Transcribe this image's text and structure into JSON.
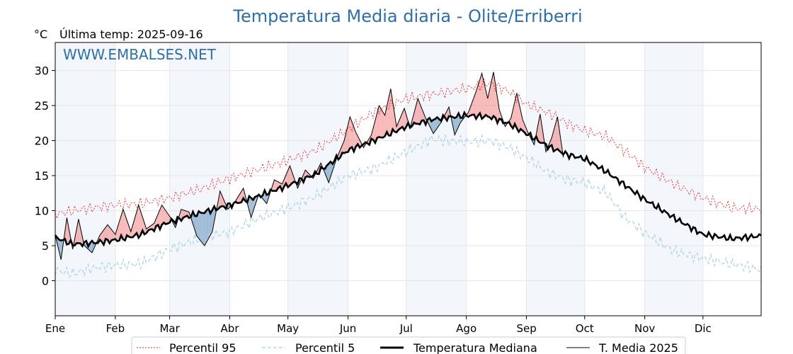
{
  "chart_data": {
    "type": "line",
    "title": "Temperatura Media diaria - Olite/Erriberri",
    "unit_label": "°C",
    "subtitle": "Última temp: 2025-09-16",
    "watermark": "WWW.EMBALSES.NET",
    "x_categories": [
      "Ene",
      "Feb",
      "Mar",
      "Abr",
      "May",
      "Jun",
      "Jul",
      "Ago",
      "Sep",
      "Oct",
      "Nov",
      "Dic"
    ],
    "x_range_days": [
      1,
      365
    ],
    "month_start_days": [
      1,
      32,
      60,
      91,
      121,
      152,
      182,
      213,
      244,
      274,
      305,
      335
    ],
    "ylim": [
      -5,
      34
    ],
    "yticks": [
      0,
      5,
      10,
      15,
      20,
      25,
      30
    ],
    "grid": true,
    "legend_position": "bottom",
    "series": [
      {
        "name": "Percentil 95",
        "color": "#e4262b",
        "style": "dotted",
        "points": [
          [
            1,
            9.5
          ],
          [
            15,
            10.2
          ],
          [
            32,
            10.8
          ],
          [
            45,
            11.0
          ],
          [
            60,
            11.8
          ],
          [
            75,
            13.0
          ],
          [
            91,
            14.6
          ],
          [
            105,
            15.8
          ],
          [
            121,
            17.2
          ],
          [
            135,
            18.6
          ],
          [
            152,
            21.6
          ],
          [
            165,
            24.0
          ],
          [
            182,
            26.0
          ],
          [
            195,
            26.6
          ],
          [
            213,
            27.4
          ],
          [
            225,
            28.2
          ],
          [
            235,
            27.0
          ],
          [
            244,
            25.2
          ],
          [
            255,
            24.0
          ],
          [
            265,
            22.5
          ],
          [
            274,
            21.4
          ],
          [
            285,
            20.6
          ],
          [
            295,
            18.5
          ],
          [
            305,
            16.2
          ],
          [
            320,
            13.8
          ],
          [
            335,
            11.8
          ],
          [
            350,
            10.4
          ],
          [
            365,
            10.2
          ]
        ]
      },
      {
        "name": "Percentil 5",
        "color": "#a8d1e6",
        "style": "dashed",
        "points": [
          [
            1,
            1.5
          ],
          [
            10,
            1.0
          ],
          [
            20,
            1.8
          ],
          [
            32,
            2.2
          ],
          [
            45,
            2.4
          ],
          [
            60,
            4.5
          ],
          [
            75,
            6.0
          ],
          [
            91,
            7.0
          ],
          [
            105,
            8.8
          ],
          [
            121,
            10.4
          ],
          [
            135,
            12.0
          ],
          [
            152,
            15.0
          ],
          [
            165,
            16.0
          ],
          [
            182,
            18.4
          ],
          [
            195,
            20.2
          ],
          [
            213,
            19.8
          ],
          [
            225,
            20.0
          ],
          [
            235,
            19.0
          ],
          [
            244,
            17.5
          ],
          [
            255,
            15.5
          ],
          [
            265,
            14.4
          ],
          [
            274,
            14.0
          ],
          [
            285,
            12.6
          ],
          [
            295,
            9.0
          ],
          [
            305,
            6.8
          ],
          [
            320,
            4.2
          ],
          [
            335,
            3.2
          ],
          [
            350,
            2.4
          ],
          [
            365,
            1.6
          ]
        ]
      },
      {
        "name": "Temperatura Mediana",
        "color": "#000000",
        "style": "thick",
        "points": [
          [
            1,
            6.2
          ],
          [
            10,
            5.2
          ],
          [
            20,
            5.4
          ],
          [
            32,
            5.8
          ],
          [
            45,
            6.6
          ],
          [
            60,
            8.4
          ],
          [
            75,
            9.6
          ],
          [
            91,
            10.8
          ],
          [
            105,
            12.0
          ],
          [
            121,
            13.6
          ],
          [
            135,
            15.2
          ],
          [
            152,
            18.6
          ],
          [
            165,
            20.0
          ],
          [
            182,
            22.0
          ],
          [
            195,
            23.0
          ],
          [
            213,
            23.6
          ],
          [
            225,
            23.4
          ],
          [
            235,
            22.4
          ],
          [
            244,
            21.0
          ],
          [
            255,
            19.2
          ],
          [
            265,
            18.0
          ],
          [
            274,
            17.4
          ],
          [
            285,
            15.6
          ],
          [
            295,
            13.6
          ],
          [
            305,
            11.6
          ],
          [
            320,
            9.0
          ],
          [
            335,
            6.6
          ],
          [
            350,
            6.0
          ],
          [
            365,
            6.4
          ]
        ]
      },
      {
        "name": "T. Media 2025",
        "color": "#000000",
        "style": "thin",
        "points": [
          [
            1,
            6.5
          ],
          [
            4,
            3.0
          ],
          [
            7,
            9.0
          ],
          [
            10,
            4.5
          ],
          [
            13,
            8.8
          ],
          [
            16,
            5.0
          ],
          [
            20,
            4.0
          ],
          [
            24,
            6.5
          ],
          [
            28,
            8.0
          ],
          [
            32,
            6.6
          ],
          [
            36,
            10.2
          ],
          [
            40,
            7.0
          ],
          [
            44,
            10.8
          ],
          [
            48,
            7.4
          ],
          [
            52,
            8.2
          ],
          [
            56,
            10.8
          ],
          [
            60,
            9.2
          ],
          [
            63,
            7.6
          ],
          [
            66,
            10.2
          ],
          [
            70,
            9.8
          ],
          [
            74,
            6.4
          ],
          [
            78,
            5.0
          ],
          [
            82,
            7.0
          ],
          [
            86,
            12.8
          ],
          [
            90,
            10.2
          ],
          [
            94,
            11.4
          ],
          [
            98,
            13.2
          ],
          [
            102,
            9.0
          ],
          [
            106,
            12.4
          ],
          [
            110,
            11.0
          ],
          [
            114,
            14.4
          ],
          [
            118,
            13.8
          ],
          [
            122,
            16.4
          ],
          [
            126,
            13.2
          ],
          [
            130,
            15.8
          ],
          [
            134,
            14.6
          ],
          [
            138,
            16.8
          ],
          [
            142,
            14.0
          ],
          [
            146,
            17.4
          ],
          [
            150,
            20.0
          ],
          [
            153,
            23.4
          ],
          [
            156,
            21.2
          ],
          [
            160,
            19.0
          ],
          [
            164,
            20.8
          ],
          [
            168,
            25.0
          ],
          [
            171,
            23.6
          ],
          [
            174,
            27.4
          ],
          [
            177,
            22.0
          ],
          [
            181,
            24.6
          ],
          [
            184,
            21.8
          ],
          [
            188,
            26.0
          ],
          [
            192,
            23.2
          ],
          [
            196,
            21.0
          ],
          [
            200,
            22.6
          ],
          [
            204,
            24.8
          ],
          [
            207,
            20.8
          ],
          [
            210,
            22.6
          ],
          [
            214,
            24.0
          ],
          [
            218,
            27.0
          ],
          [
            221,
            29.6
          ],
          [
            224,
            26.0
          ],
          [
            227,
            29.8
          ],
          [
            230,
            24.4
          ],
          [
            233,
            22.0
          ],
          [
            236,
            23.2
          ],
          [
            239,
            26.8
          ],
          [
            242,
            23.0
          ],
          [
            245,
            21.0
          ],
          [
            248,
            19.4
          ],
          [
            251,
            23.8
          ],
          [
            254,
            18.4
          ],
          [
            257,
            20.4
          ],
          [
            260,
            23.4
          ],
          [
            263,
            17.6
          ]
        ]
      }
    ]
  },
  "legend": {
    "items": [
      {
        "label": "Percentil 95"
      },
      {
        "label": "Percentil 5"
      },
      {
        "label": "Temperatura Mediana"
      },
      {
        "label": "T. Media 2025"
      }
    ]
  },
  "colors": {
    "above_fill": "#f08080",
    "below_fill": "#5b8db8",
    "band_fill": "#dbe7f4",
    "grid": "#e6e6e6",
    "title": "#2e6fa7"
  }
}
